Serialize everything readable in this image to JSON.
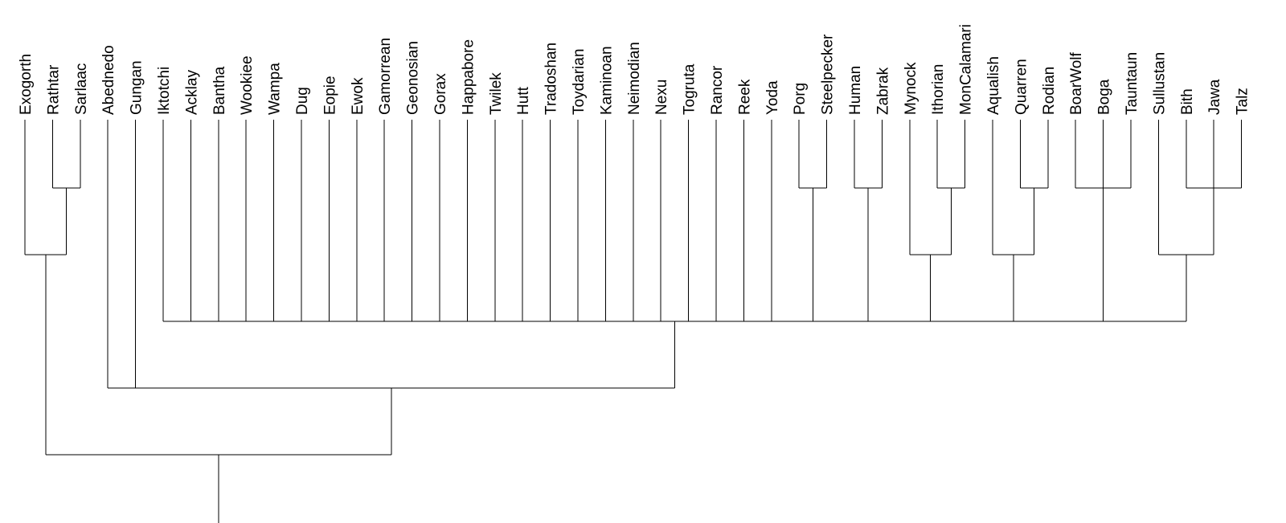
{
  "leaves": [
    "Exogorth",
    "Rathtar",
    "Sarlaac",
    "Abednedo",
    "Gungan",
    "Iktotchi",
    "Acklay",
    "Bantha",
    "Wookiee",
    "Wampa",
    "Dug",
    "Eopie",
    "Ewok",
    "Gamorrean",
    "Geonosian",
    "Gorax",
    "Happabore",
    "Twilek",
    "Hutt",
    "Tradoshan",
    "Toydarian",
    "Kaminoan",
    "Neimodian",
    "Nexu",
    "Togruta",
    "Rancor",
    "Reek",
    "Yoda",
    "Porg",
    "Steelpecker",
    "Human",
    "Zabrak",
    "Mynock",
    "Ithorian",
    "MonCalamari",
    "Aqualish",
    "Quarren",
    "Rodian",
    "BoarWolf",
    "Boga",
    "Tauntaun",
    "Sullustan",
    "Bith",
    "Jawa",
    "Talz"
  ],
  "tree": {
    "type": "dendrogram",
    "orientation": "root-at-bottom",
    "line_color": "#000000",
    "clusters": [
      {
        "id": "c1",
        "children": [
          "Rathtar",
          "Sarlaac"
        ],
        "level": 1
      },
      {
        "id": "c2",
        "children": [
          "Exogorth",
          "c1"
        ],
        "level": 2
      },
      {
        "id": "c3",
        "children": [
          "Porg",
          "Steelpecker"
        ],
        "level": 1
      },
      {
        "id": "c4",
        "children": [
          "Human",
          "Zabrak"
        ],
        "level": 1
      },
      {
        "id": "c5",
        "children": [
          "Ithorian",
          "MonCalamari"
        ],
        "level": 1
      },
      {
        "id": "c6",
        "children": [
          "Mynock",
          "c5"
        ],
        "level": 2
      },
      {
        "id": "c7",
        "children": [
          "Quarren",
          "Rodian"
        ],
        "level": 1
      },
      {
        "id": "c8",
        "children": [
          "Aqualish",
          "c7"
        ],
        "level": 2
      },
      {
        "id": "c9",
        "children": [
          "BoarWolf",
          "Boga",
          "Tauntaun"
        ],
        "level": 1
      },
      {
        "id": "c10",
        "children": [
          "Bith",
          "Jawa",
          "Talz"
        ],
        "level": 1
      },
      {
        "id": "c11",
        "children": [
          "Sullustan",
          "c10"
        ],
        "level": 2
      },
      {
        "id": "c12",
        "children": [
          "Iktotchi",
          "Acklay",
          "Bantha",
          "Wookiee",
          "Wampa",
          "Dug",
          "Eopie",
          "Ewok",
          "Gamorrean",
          "Geonosian",
          "Gorax",
          "Happabore",
          "Twilek",
          "Hutt",
          "Tradoshan",
          "Toydarian",
          "Kaminoan",
          "Neimodian",
          "Nexu",
          "Togruta",
          "Rancor",
          "Reek",
          "Yoda",
          "c3",
          "c4",
          "c6",
          "c8",
          "c9",
          "c11"
        ],
        "level": 3
      },
      {
        "id": "c13",
        "children": [
          "Abednedo",
          "Gungan",
          "c12"
        ],
        "level": 4
      },
      {
        "id": "c14",
        "children": [
          "c2",
          "c13"
        ],
        "level": 5
      }
    ],
    "root": "c14"
  }
}
